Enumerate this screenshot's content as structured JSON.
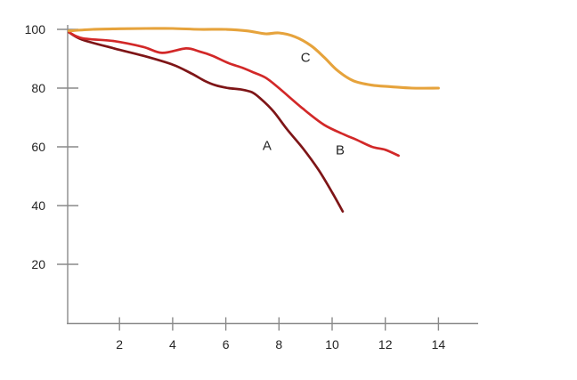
{
  "page": {
    "background": "#ffffff"
  },
  "chart_data": {
    "type": "line",
    "title": "",
    "xlabel": "",
    "ylabel": "",
    "xlim": [
      0,
      15.5
    ],
    "ylim": [
      0,
      108
    ],
    "x_ticks": [
      "2",
      "4",
      "6",
      "8",
      "10",
      "12",
      "14"
    ],
    "x_tick_values": [
      2,
      4,
      6,
      8,
      10,
      12,
      14
    ],
    "y_ticks": [
      "20",
      "40",
      "60",
      "80",
      "100"
    ],
    "y_tick_values": [
      20,
      40,
      60,
      80,
      100
    ],
    "grid": false,
    "legend_position": "inline-labels",
    "axis_color": "#8a8a8a",
    "text_color": "#242424",
    "series": [
      {
        "name": "A",
        "color": "#7e1517",
        "stroke_width": 2.7,
        "label_pos": {
          "x": 7.55,
          "y": 59.0
        },
        "points": [
          [
            0.1,
            99
          ],
          [
            0.6,
            96.5
          ],
          [
            1.8,
            93.5
          ],
          [
            2.9,
            91
          ],
          [
            4.0,
            88
          ],
          [
            4.7,
            85
          ],
          [
            5.2,
            82.5
          ],
          [
            5.6,
            81
          ],
          [
            6.1,
            80
          ],
          [
            6.6,
            79.5
          ],
          [
            7.0,
            78.5
          ],
          [
            7.3,
            76.5
          ],
          [
            7.8,
            72
          ],
          [
            8.3,
            66
          ],
          [
            8.9,
            59.5
          ],
          [
            9.5,
            52
          ],
          [
            10.0,
            44.5
          ],
          [
            10.4,
            38
          ]
        ]
      },
      {
        "name": "B",
        "color": "#d22828",
        "stroke_width": 2.7,
        "label_pos": {
          "x": 10.3,
          "y": 57.5
        },
        "points": [
          [
            0.1,
            99
          ],
          [
            0.6,
            97
          ],
          [
            1.8,
            96
          ],
          [
            2.9,
            94
          ],
          [
            3.6,
            92
          ],
          [
            4.5,
            93.5
          ],
          [
            5.0,
            92.5
          ],
          [
            5.5,
            91
          ],
          [
            6.1,
            88.5
          ],
          [
            6.6,
            87
          ],
          [
            7.0,
            85.5
          ],
          [
            7.5,
            83.5
          ],
          [
            8.0,
            80
          ],
          [
            8.9,
            73
          ],
          [
            9.7,
            67.5
          ],
          [
            10.5,
            64
          ],
          [
            10.9,
            62.5
          ],
          [
            11.5,
            60
          ],
          [
            12.0,
            59
          ],
          [
            12.5,
            57
          ]
        ]
      },
      {
        "name": "C",
        "color": "#e6a33c",
        "stroke_width": 3.1,
        "label_pos": {
          "x": 9.0,
          "y": 89.0
        },
        "points": [
          [
            0.1,
            99.5
          ],
          [
            1.0,
            100
          ],
          [
            2.0,
            100.2
          ],
          [
            3.0,
            100.3
          ],
          [
            4.0,
            100.3
          ],
          [
            5.0,
            100
          ],
          [
            6.0,
            100
          ],
          [
            6.8,
            99.5
          ],
          [
            7.5,
            98.5
          ],
          [
            8.0,
            98.8
          ],
          [
            8.6,
            97.5
          ],
          [
            9.2,
            94.5
          ],
          [
            9.7,
            90.5
          ],
          [
            10.2,
            86
          ],
          [
            10.8,
            82.5
          ],
          [
            11.5,
            81
          ],
          [
            12.2,
            80.5
          ],
          [
            13.0,
            80
          ],
          [
            14.0,
            80
          ]
        ]
      }
    ]
  }
}
